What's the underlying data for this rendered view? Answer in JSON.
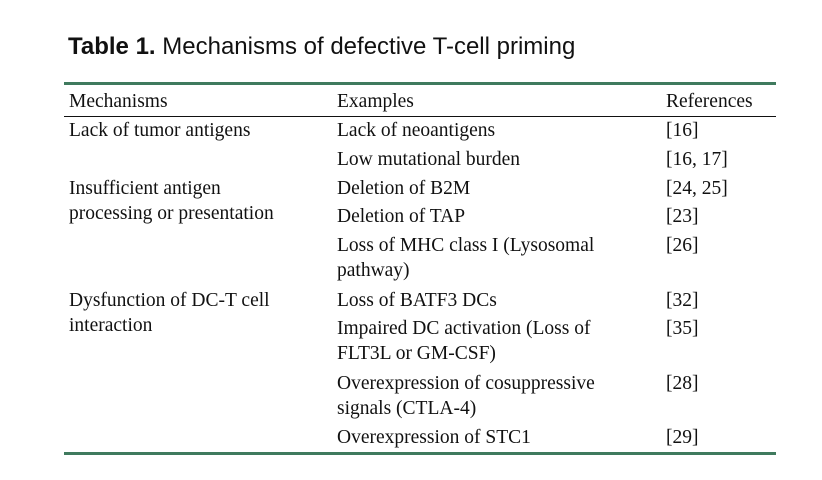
{
  "caption": {
    "label": "Table 1.",
    "title": "Mechanisms of defective T-cell priming"
  },
  "colors": {
    "rule": "#3f7a5e",
    "text": "#111111"
  },
  "table": {
    "headers": {
      "mechanisms": "Mechanisms",
      "examples": "Examples",
      "references": "References"
    },
    "mechanisms": [
      {
        "lines": [
          "Lack of tumor antigens"
        ]
      },
      {
        "lines": [
          "Insufficient antigen",
          "processing or presentation"
        ]
      },
      {
        "lines": [
          "Dysfunction of DC-T cell",
          "interaction"
        ]
      }
    ],
    "rows": [
      {
        "example": [
          "Lack of neoantigens"
        ],
        "refs": "[16]"
      },
      {
        "example": [
          "Low mutational burden"
        ],
        "refs": "[16, 17]"
      },
      {
        "example": [
          "Deletion of B2M"
        ],
        "refs": "[24, 25]"
      },
      {
        "example": [
          "Deletion of TAP"
        ],
        "refs": "[23]"
      },
      {
        "example": [
          "Loss of MHC class I (Lysosomal",
          "pathway)"
        ],
        "refs": "[26]"
      },
      {
        "example": [
          "Loss of BATF3 DCs"
        ],
        "refs": "[32]"
      },
      {
        "example": [
          "Impaired DC activation (Loss of",
          "FLT3L or GM-CSF)"
        ],
        "refs": "[35]"
      },
      {
        "example": [
          "Overexpression of cosuppressive",
          "signals (CTLA-4)"
        ],
        "refs": "[28]"
      },
      {
        "example": [
          "Overexpression of STC1"
        ],
        "refs": "[29]"
      }
    ]
  }
}
